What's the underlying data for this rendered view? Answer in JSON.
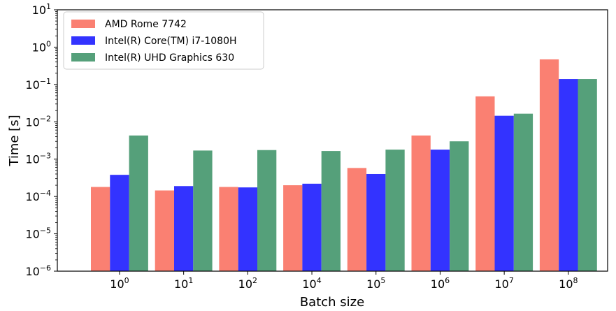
{
  "chart_data": {
    "type": "bar",
    "title": "",
    "xlabel": "Batch size",
    "ylabel": "Time [s]",
    "yscale": "log",
    "ylim": [
      1e-06,
      10
    ],
    "y_ticks": [
      {
        "base": "10",
        "exp": "−6",
        "value": 1e-06
      },
      {
        "base": "10",
        "exp": "−5",
        "value": 1e-05
      },
      {
        "base": "10",
        "exp": "−4",
        "value": 0.0001
      },
      {
        "base": "10",
        "exp": "−3",
        "value": 0.001
      },
      {
        "base": "10",
        "exp": "−2",
        "value": 0.01
      },
      {
        "base": "10",
        "exp": "−1",
        "value": 0.1
      },
      {
        "base": "10",
        "exp": "0",
        "value": 1
      },
      {
        "base": "10",
        "exp": "1",
        "value": 10
      }
    ],
    "categories": [
      {
        "base": "10",
        "exp": "0"
      },
      {
        "base": "10",
        "exp": "1"
      },
      {
        "base": "10",
        "exp": "2"
      },
      {
        "base": "10",
        "exp": "4"
      },
      {
        "base": "10",
        "exp": "5"
      },
      {
        "base": "10",
        "exp": "6"
      },
      {
        "base": "10",
        "exp": "7"
      },
      {
        "base": "10",
        "exp": "8"
      }
    ],
    "grid": false,
    "legend_position": "top-left",
    "series": [
      {
        "name": "AMD Rome 7742",
        "color": "#fa8072",
        "values": [
          0.00018,
          0.000145,
          0.00018,
          0.0002,
          0.00058,
          0.0043,
          0.048,
          0.47
        ]
      },
      {
        "name": "Intel(R) Core(TM) i7-1080H",
        "color": "#3333ff",
        "values": [
          0.00038,
          0.00019,
          0.000175,
          0.00022,
          0.0004,
          0.0018,
          0.0145,
          0.14
        ]
      },
      {
        "name": "Intel(R) UHD Graphics 630",
        "color": "#55a07a",
        "values": [
          0.0043,
          0.0017,
          0.00175,
          0.00165,
          0.0018,
          0.003,
          0.0165,
          0.14
        ]
      }
    ]
  }
}
